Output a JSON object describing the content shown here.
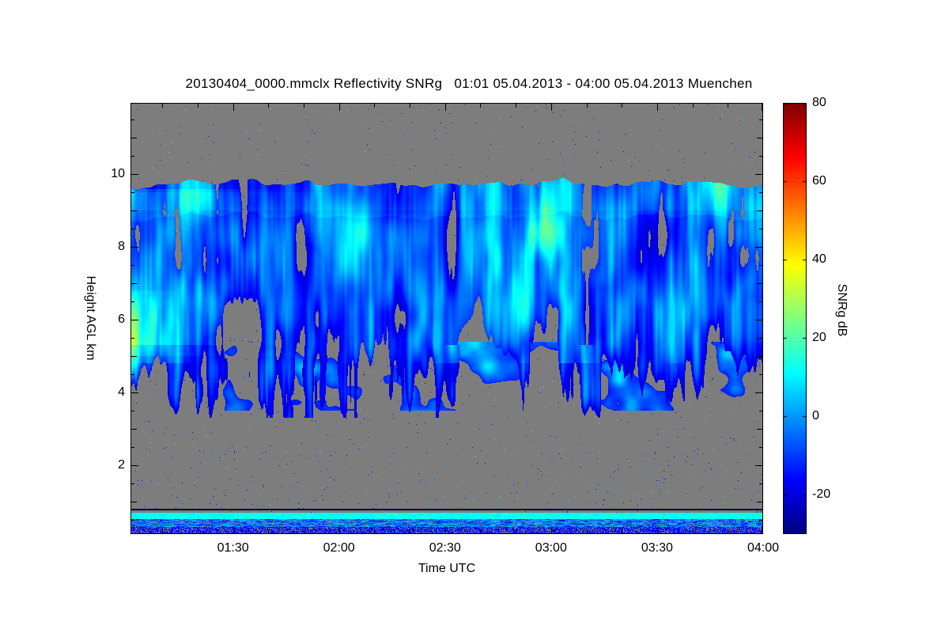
{
  "chart_data": {
    "type": "heatmap",
    "title": "20130404_0000.mmclx Reflectivity SNRg   01:01 05.04.2013 - 04:00 05.04.2013 Muenchen",
    "instrument_file": "20130404_0000.mmclx",
    "quantity": "Reflectivity SNRg",
    "time_start": "01:01 05.04.2013",
    "time_end": "04:00 05.04.2013",
    "station": "Muenchen",
    "xlabel": "Time UTC",
    "ylabel": "Height AGL km",
    "x_axis": {
      "start": "01:01",
      "end": "04:00",
      "start_minute": 61,
      "end_minute": 240,
      "tick_labels": [
        "01:30",
        "02:00",
        "02:30",
        "03:00",
        "03:30",
        "04:00"
      ],
      "tick_minutes": [
        90,
        120,
        150,
        180,
        210,
        240
      ],
      "minor_tick_step_minutes": 10
    },
    "y_axis": {
      "min_km": 0.1,
      "max_km": 11.95,
      "ticks": [
        2,
        4,
        6,
        8,
        10
      ],
      "minor_step_km": 0.5
    },
    "colorbar": {
      "label": "SNRg dB",
      "min": -30,
      "max": 80,
      "ticks": [
        -20,
        0,
        20,
        40,
        60,
        80
      ],
      "colormap": "jet"
    },
    "grid": false,
    "background_meaning": "no signal (gray)",
    "features": {
      "cloud_deck": {
        "description": "Deep ice cloud layer with fallstreaks and virga; ragged broken base, bright cyan-green cores strongest 01:01-01:50",
        "top_km_mean": 9.5,
        "top_km_variation": 0.45,
        "base_km_min": 3.3,
        "snr_db_typical": [
          -24,
          5
        ],
        "bright_core_snr_db_max": 18,
        "gap_minutes": [
          152,
          190
        ]
      },
      "lower_patches": {
        "description": "Scattered sloping virga patches between 3.5 and 5.4 km",
        "height_km": [
          3.5,
          5.4
        ],
        "snr_db": [
          -16,
          8
        ]
      },
      "surface_layer": {
        "dark_line_km": 0.8,
        "bright_band_km": [
          0.52,
          0.7
        ],
        "bright_band_snr_db": [
          6,
          18
        ],
        "mixed_band_km": [
          0.3,
          0.52
        ],
        "mixed_band_snr_db": [
          -20,
          12
        ],
        "low_band_km": [
          0.12,
          0.3
        ]
      },
      "speckle": {
        "description": "Isolated noise pixels scattered over the no-signal background",
        "snr_db": [
          -26,
          18
        ]
      }
    }
  },
  "palette": {
    "page_background": "#ffffff",
    "plot_background": "#7d7d7d",
    "frame": "#000000",
    "dark_line": "#0a0a33"
  }
}
